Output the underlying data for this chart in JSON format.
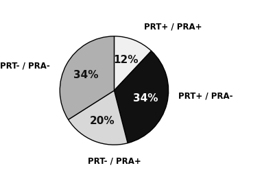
{
  "labels": [
    "PRT+ / PRA+",
    "PRT+ / PRA-",
    "PRT- / PRA+",
    "PRT- / PRA-"
  ],
  "values": [
    12,
    34,
    20,
    34
  ],
  "colors": [
    "#f0f0f0",
    "#111111",
    "#d8d8d8",
    "#b0b0b0"
  ],
  "pct_labels": [
    "12%",
    "34%",
    "20%",
    "34%"
  ],
  "pct_colors": [
    "#111111",
    "#ffffff",
    "#111111",
    "#111111"
  ],
  "startangle": 90,
  "background_color": "#ffffff",
  "label_fontsize": 8.5,
  "pct_fontsize": 11,
  "counterclock": false
}
